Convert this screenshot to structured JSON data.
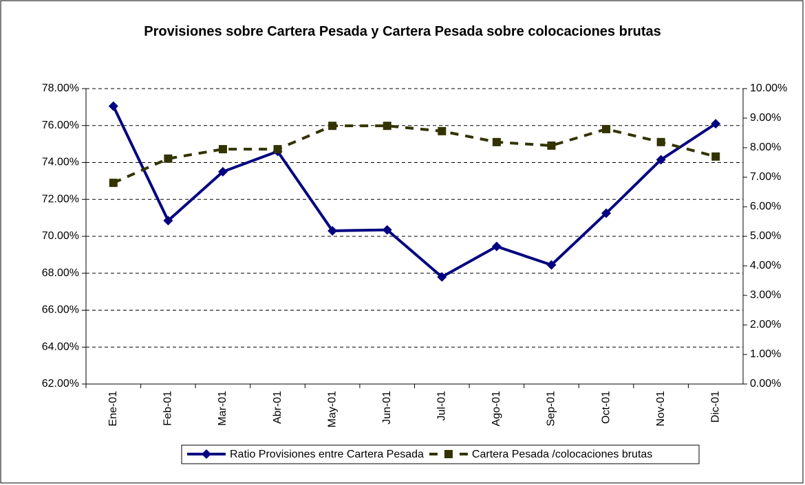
{
  "chart_data": {
    "type": "line",
    "title": "Provisiones sobre Cartera Pesada y Cartera Pesada sobre colocaciones brutas",
    "categories": [
      "Ene-01",
      "Feb-01",
      "Mar-01",
      "Abr-01",
      "May-01",
      "Jun-01",
      "Jul-01",
      "Ago-01",
      "Sep-01",
      "Oct-01",
      "Nov-01",
      "Dic-01"
    ],
    "series": [
      {
        "name": "Ratio Provisiones entre Cartera Pesada",
        "color": "#000080",
        "axis": "y",
        "line": "solid",
        "marker": "diamond",
        "values": [
          77.05,
          70.85,
          73.5,
          74.6,
          70.3,
          70.35,
          67.8,
          69.45,
          68.45,
          71.25,
          74.15,
          76.1
        ]
      },
      {
        "name": "Cartera Pesada /colocaciones brutas",
        "color": "#333300",
        "axis": "y2",
        "line": "dashed",
        "marker": "square",
        "values": [
          6.81,
          7.63,
          7.95,
          7.95,
          8.74,
          8.74,
          8.56,
          8.19,
          8.07,
          8.63,
          8.19,
          7.7
        ]
      }
    ],
    "ylim": [
      62,
      78
    ],
    "yticks": [
      {
        "value": 62,
        "label": "62.00%"
      },
      {
        "value": 64,
        "label": "64.00%"
      },
      {
        "value": 66,
        "label": "66.00%"
      },
      {
        "value": 68,
        "label": "68.00%"
      },
      {
        "value": 70,
        "label": "70.00%"
      },
      {
        "value": 72,
        "label": "72.00%"
      },
      {
        "value": 74,
        "label": "74.00%"
      },
      {
        "value": 76,
        "label": "76.00%"
      },
      {
        "value": 78,
        "label": "78.00%"
      }
    ],
    "y2lim": [
      0,
      10
    ],
    "y2ticks": [
      {
        "value": 0,
        "label": "0.00%"
      },
      {
        "value": 1,
        "label": "1.00%"
      },
      {
        "value": 2,
        "label": "2.00%"
      },
      {
        "value": 3,
        "label": "3.00%"
      },
      {
        "value": 4,
        "label": "4.00%"
      },
      {
        "value": 5,
        "label": "5.00%"
      },
      {
        "value": 6,
        "label": "6.00%"
      },
      {
        "value": 7,
        "label": "7.00%"
      },
      {
        "value": 8,
        "label": "8.00%"
      },
      {
        "value": 9,
        "label": "9.00%"
      },
      {
        "value": 10,
        "label": "10.00%"
      }
    ],
    "grid": true,
    "legend": "bottom"
  }
}
